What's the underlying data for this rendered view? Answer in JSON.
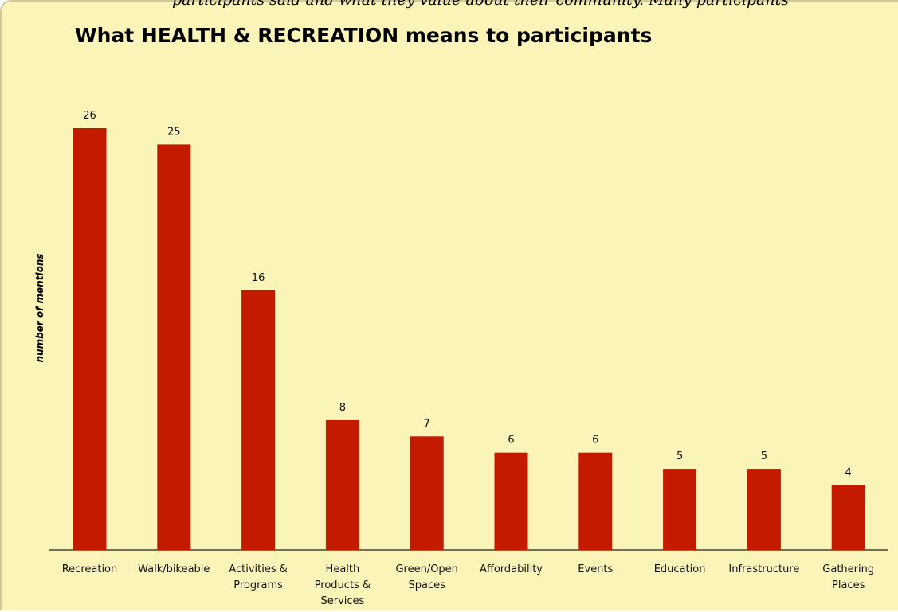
{
  "header_clip": "participants said and what they value about their community. Many participants",
  "chart_data": {
    "type": "bar",
    "title": "What HEALTH & RECREATION means to participants",
    "ylabel": "number of mentions",
    "xlabel": "",
    "categories": [
      [
        "Recreation"
      ],
      [
        "Walk/bikeable"
      ],
      [
        "Activities &",
        "Programs"
      ],
      [
        "Health",
        "Products &",
        "Services"
      ],
      [
        "Green/Open",
        "Spaces"
      ],
      [
        "Affordability"
      ],
      [
        "Events"
      ],
      [
        "Education"
      ],
      [
        "Infrastructure"
      ],
      [
        "Gathering",
        "Places"
      ]
    ],
    "values": [
      26,
      25,
      16,
      8,
      7,
      6,
      6,
      5,
      5,
      4
    ],
    "ylim": [
      0,
      26
    ],
    "grid": false,
    "bar_color": "#c41a00",
    "background_color": "#fbf4b8"
  }
}
